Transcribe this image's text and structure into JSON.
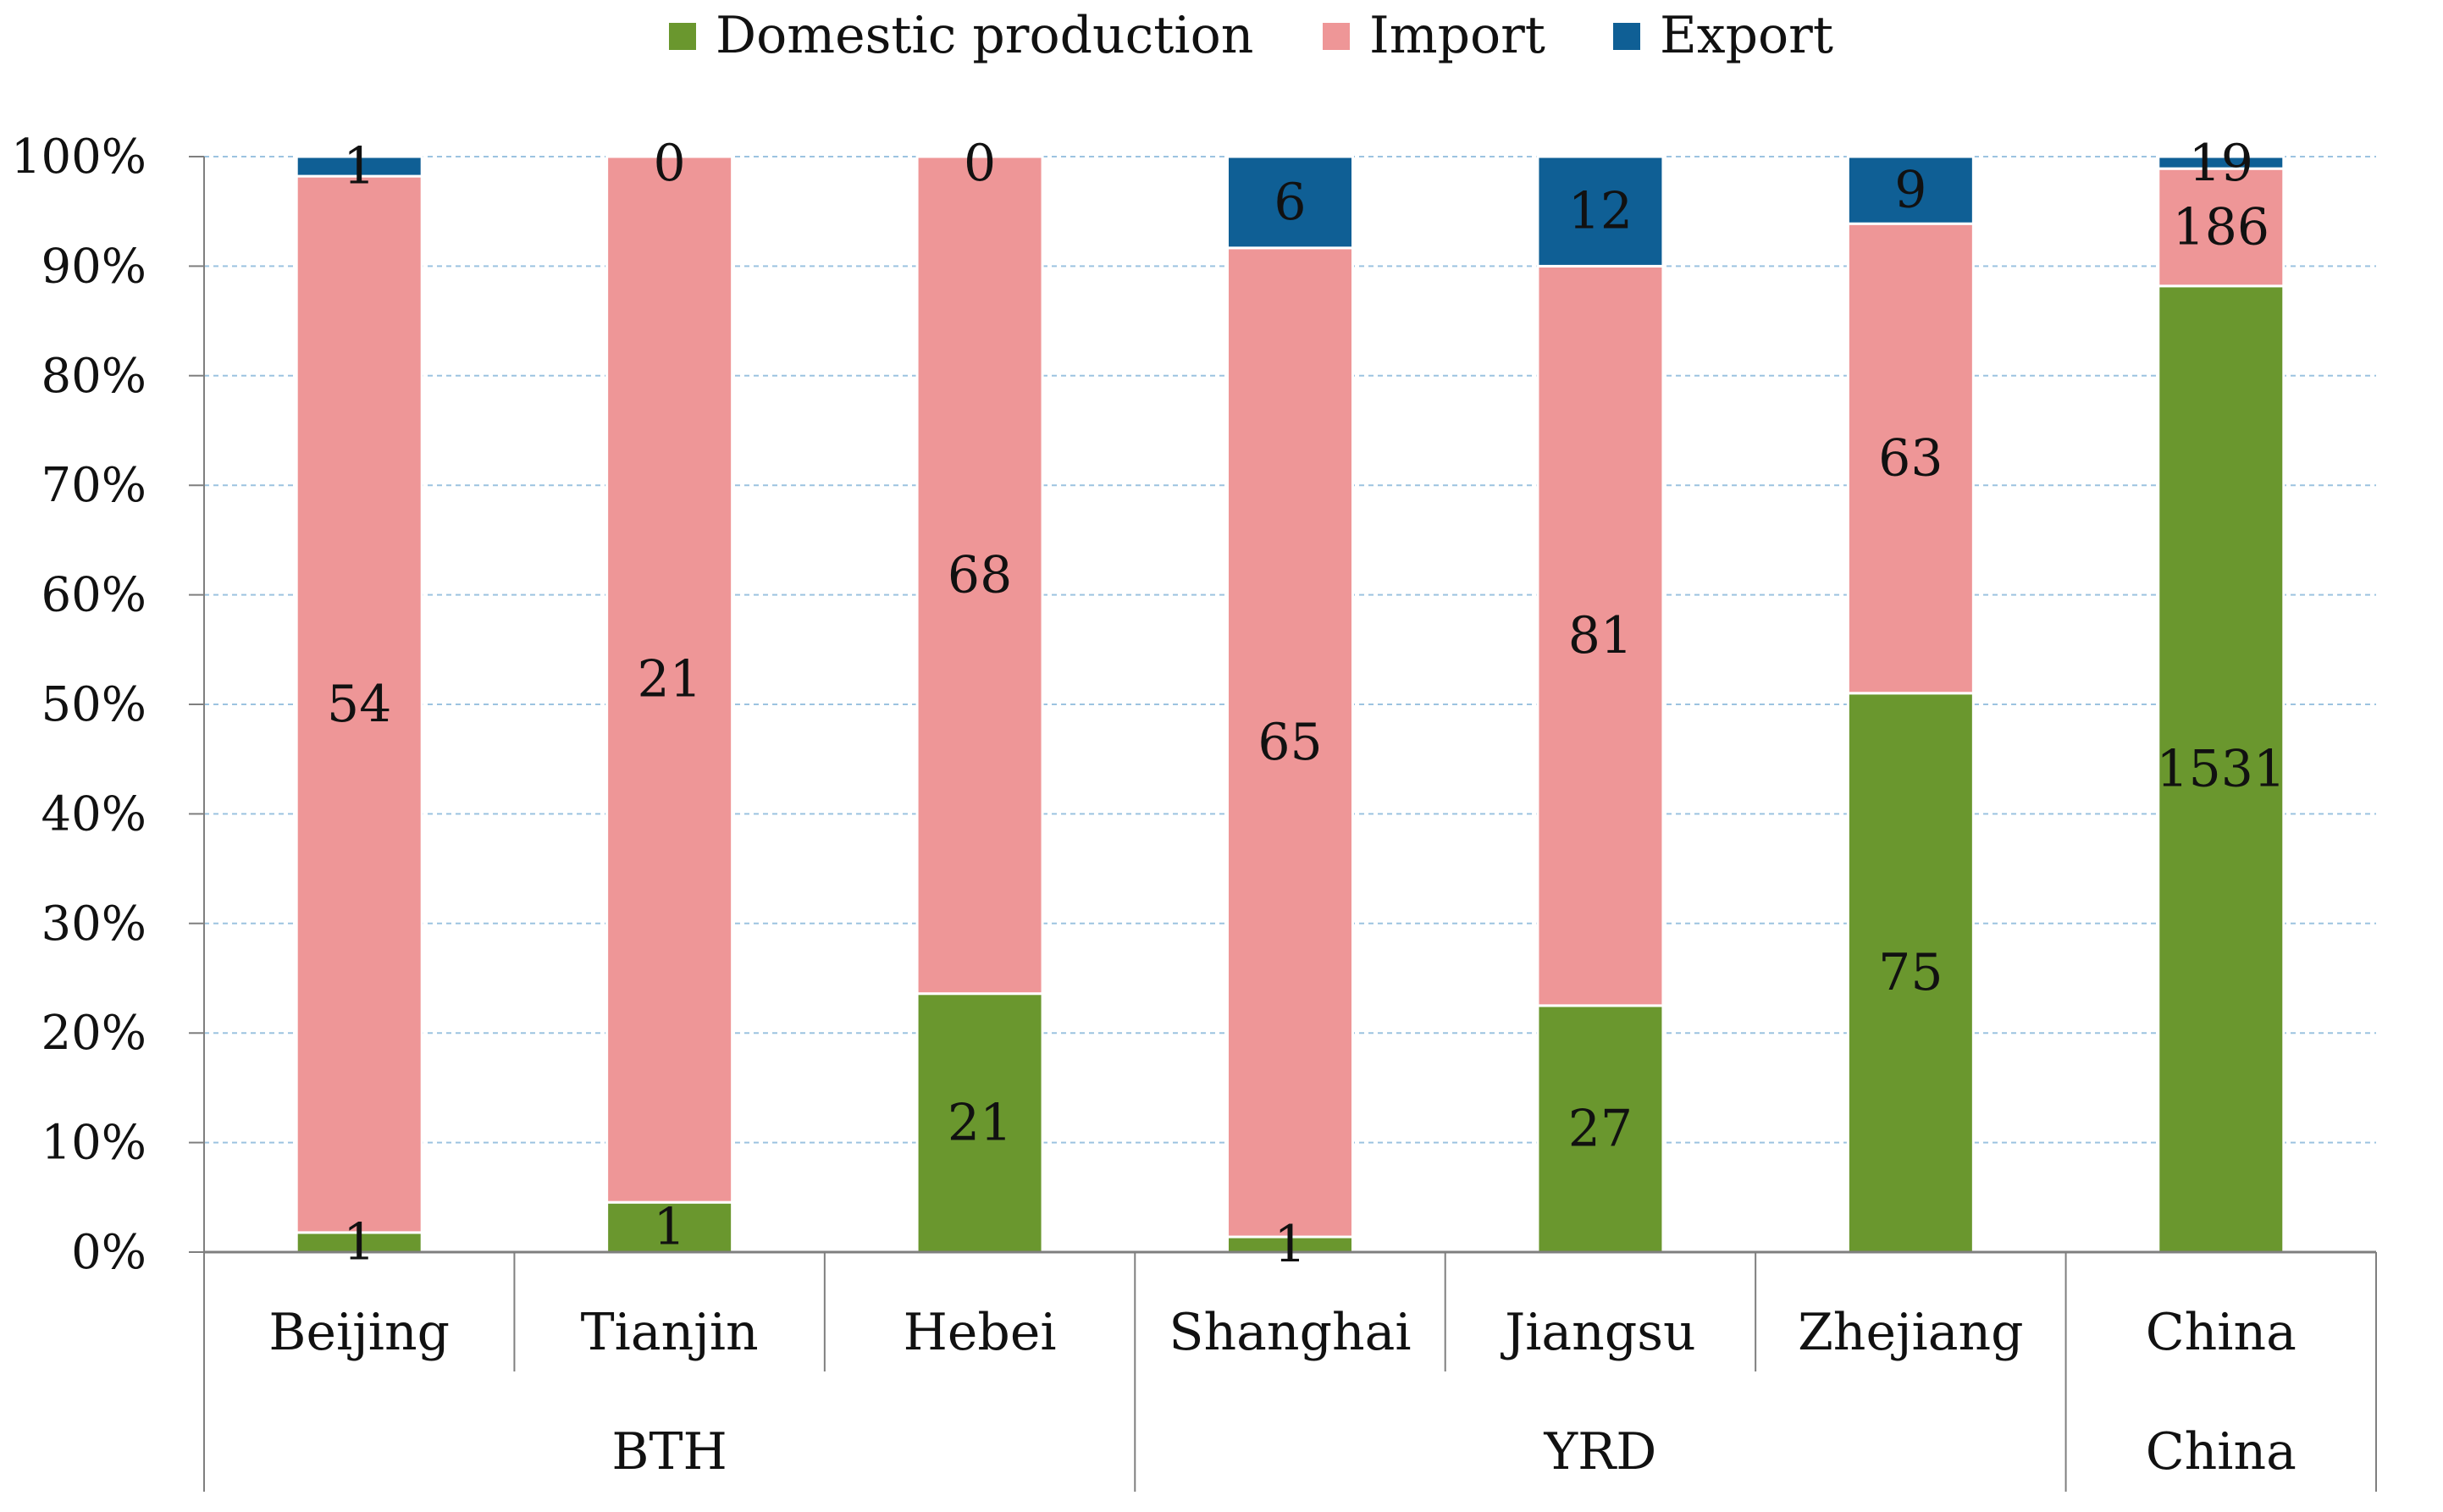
{
  "chart_data": {
    "type": "bar",
    "stacked": "percent",
    "categories": [
      "Beijing",
      "Tianjin",
      "Hebei",
      "Shanghai",
      "Jiangsu",
      "Zhejiang",
      "China"
    ],
    "groups": [
      {
        "label": "BTH",
        "categories": [
          "Beijing",
          "Tianjin",
          "Hebei"
        ]
      },
      {
        "label": "YRD",
        "categories": [
          "Shanghai",
          "Jiangsu",
          "Zhejiang"
        ]
      },
      {
        "label": "China",
        "categories": [
          "China"
        ]
      }
    ],
    "series": [
      {
        "name": "Domestic production",
        "color": "#6a972e",
        "values": [
          1,
          1,
          21,
          1,
          27,
          75,
          1531
        ]
      },
      {
        "name": "Import",
        "color": "#ee9697",
        "values": [
          54,
          21,
          68,
          65,
          81,
          63,
          186
        ]
      },
      {
        "name": "Export",
        "color": "#0f5f95",
        "values": [
          1,
          0,
          0,
          6,
          12,
          9,
          19
        ]
      }
    ],
    "y_ticks": [
      "0%",
      "10%",
      "20%",
      "30%",
      "40%",
      "50%",
      "60%",
      "70%",
      "80%",
      "90%",
      "100%"
    ],
    "ylim": [
      0,
      100
    ],
    "grid": true,
    "legend_position": "top-center",
    "title": "",
    "xlabel": "",
    "ylabel": ""
  }
}
